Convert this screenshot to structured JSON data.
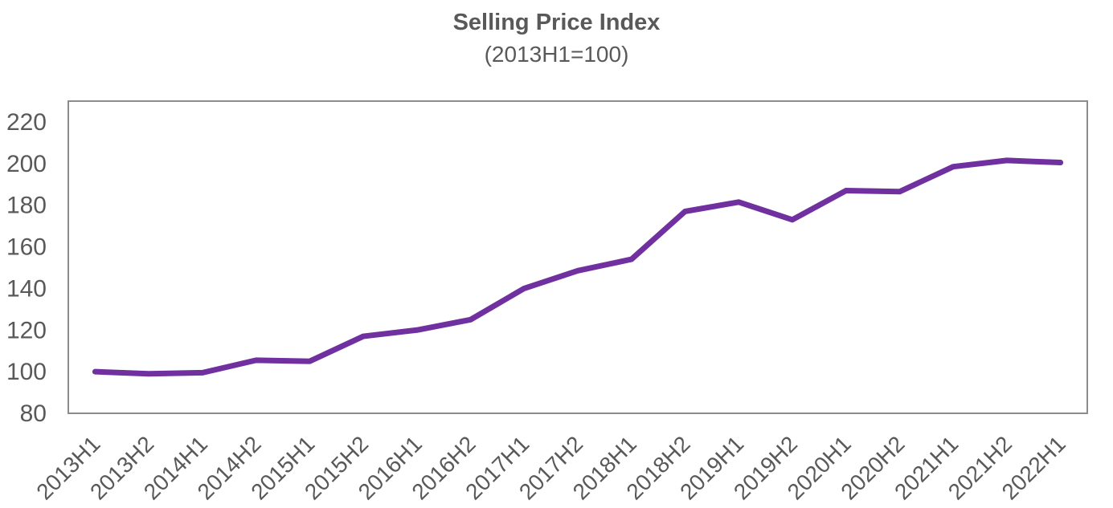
{
  "chart_data": {
    "type": "line",
    "title": "Selling Price Index",
    "subtitle": "(2013H1=100)",
    "xlabel": "",
    "ylabel": "",
    "categories": [
      "2013H1",
      "2013H2",
      "2014H1",
      "2014H2",
      "2015H1",
      "2015H2",
      "2016H1",
      "2016H2",
      "2017H1",
      "2017H2",
      "2018H1",
      "2018H2",
      "2019H1",
      "2019H2",
      "2020H1",
      "2020H2",
      "2021H1",
      "2021H2",
      "2022H1"
    ],
    "values": [
      100,
      99,
      99.5,
      105.5,
      105,
      117,
      120,
      125,
      140,
      148.5,
      154,
      177,
      181.5,
      173,
      187,
      186.5,
      198.5,
      201.5,
      200.5
    ],
    "ylim": [
      80,
      230
    ],
    "yticks": [
      80,
      100,
      120,
      140,
      160,
      180,
      200,
      220
    ],
    "grid": false,
    "legend": "none",
    "line_color": "#7030A0",
    "axis_text_color": "#595959",
    "plot_border_color": "#8C8C8C"
  }
}
